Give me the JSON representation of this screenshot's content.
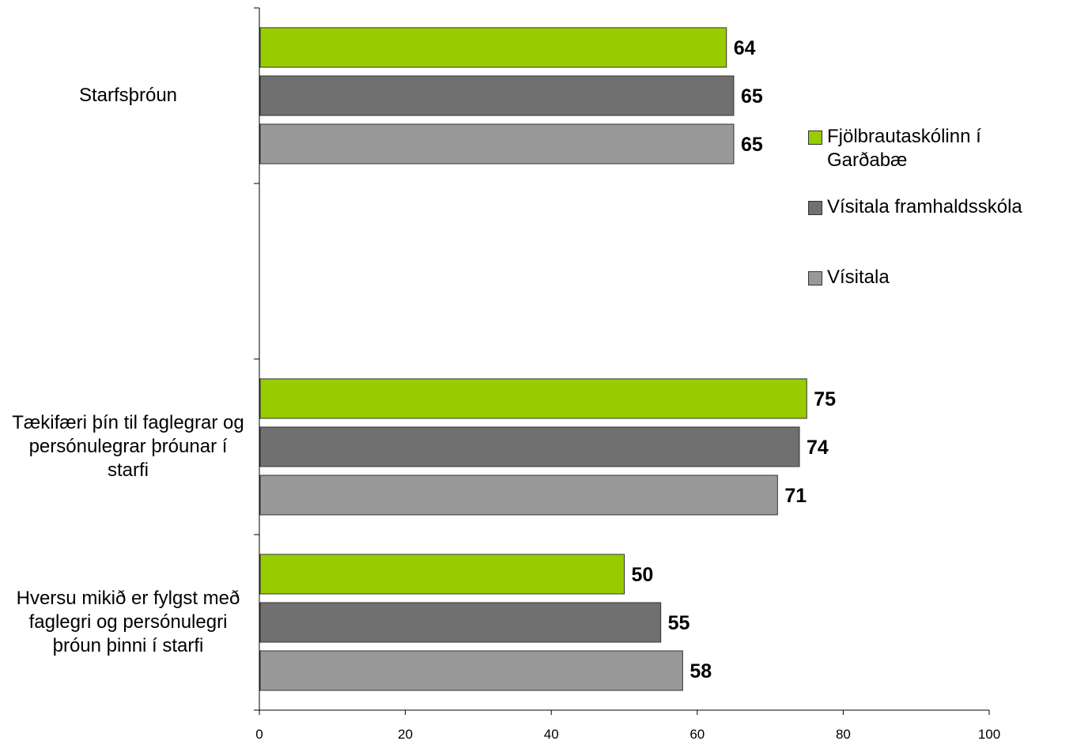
{
  "chart_data": {
    "type": "bar",
    "orientation": "horizontal",
    "categories": [
      "Starfsþróun",
      "",
      "Tækifæri þín til faglegrar og persónulegrar þróunar í starfi",
      "Hversu mikið er fylgst með faglegri og persónulegri þróun þinni í starfi"
    ],
    "series": [
      {
        "name": "Fjölbrautaskólinn í Garðabæ",
        "color": "#99cc00",
        "values": [
          64,
          null,
          75,
          50
        ]
      },
      {
        "name": "Vísitala framhaldsskóla",
        "color": "#707070",
        "values": [
          65,
          null,
          74,
          55
        ]
      },
      {
        "name": "Vísitala",
        "color": "#999999",
        "values": [
          65,
          null,
          71,
          58
        ]
      }
    ],
    "xlim": [
      0,
      100
    ],
    "xticks": [
      "0",
      "20",
      "40",
      "60",
      "80",
      "100"
    ],
    "legend_position": "right",
    "grid": false
  }
}
